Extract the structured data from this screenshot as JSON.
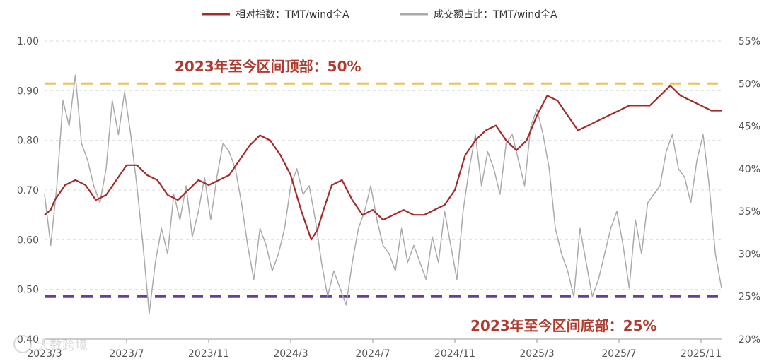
{
  "chart_data": {
    "type": "line",
    "legend": {
      "placement": "top-center",
      "items": [
        {
          "label": "相对指数：TMT/wind全A",
          "color": "#a52a2a"
        },
        {
          "label": "成交额占比：TMT/wind全A",
          "color": "#aaaaaa"
        }
      ]
    },
    "x_tick_labels": [
      "2023/3",
      "2023/7",
      "2023/11",
      "2024/3",
      "2024/7",
      "2024/11",
      "2025/3",
      "2025/7",
      "2025/11"
    ],
    "y_left": {
      "range": [
        0.4,
        1.0
      ],
      "tick_labels": [
        "0.40",
        "0.50",
        "0.60",
        "0.70",
        "0.80",
        "0.90",
        "1.00"
      ]
    },
    "y_right": {
      "range": [
        20,
        55
      ],
      "tick_labels": [
        "20%",
        "25%",
        "30%",
        "35%",
        "40%",
        "45%",
        "50%",
        "55%"
      ]
    },
    "grid": "horizontal dashed",
    "reference_lines": [
      {
        "label": "2023年至今区间顶部：50%",
        "value_pct": 50,
        "color": "#e8c456"
      },
      {
        "label": "2023年至今区间底部：25%",
        "value_pct": 25,
        "color": "#6a3d9a"
      }
    ],
    "series": [
      {
        "name": "相对指数：TMT/wind全A",
        "axis": "left",
        "color": "#a52a2a",
        "x": [
          0,
          0.3,
          0.5,
          1,
          1.5,
          2,
          2.5,
          3,
          3.5,
          4,
          4.5,
          5,
          5.5,
          6,
          6.5,
          7,
          7.5,
          8,
          8.5,
          9,
          9.5,
          10,
          10.5,
          11,
          11.5,
          12,
          12.5,
          13,
          13.3,
          13.6,
          14,
          14.5,
          15,
          15.5,
          16,
          16.5,
          17,
          17.5,
          18,
          18.5,
          19,
          19.5,
          20,
          20.5,
          21,
          21.5,
          22,
          22.5,
          23,
          23.5,
          24,
          24.5,
          25,
          25.5,
          26,
          26.5,
          27,
          27.5,
          28,
          28.5,
          29,
          29.5,
          30,
          30.5,
          31,
          31.5,
          32,
          32.5,
          33
        ],
        "values": [
          0.65,
          0.66,
          0.68,
          0.71,
          0.72,
          0.71,
          0.68,
          0.69,
          0.72,
          0.75,
          0.75,
          0.73,
          0.72,
          0.69,
          0.68,
          0.7,
          0.72,
          0.71,
          0.72,
          0.73,
          0.76,
          0.79,
          0.81,
          0.8,
          0.77,
          0.73,
          0.66,
          0.6,
          0.62,
          0.66,
          0.71,
          0.72,
          0.68,
          0.65,
          0.66,
          0.64,
          0.65,
          0.66,
          0.65,
          0.65,
          0.66,
          0.67,
          0.7,
          0.77,
          0.8,
          0.82,
          0.83,
          0.8,
          0.78,
          0.8,
          0.85,
          0.89,
          0.88,
          0.85,
          0.82,
          0.83,
          0.84,
          0.85,
          0.86,
          0.87,
          0.87,
          0.87,
          0.89,
          0.91,
          0.89,
          0.88,
          0.87,
          0.86,
          0.86
        ]
      },
      {
        "name": "成交额占比：TMT/wind全A",
        "axis": "right",
        "color": "#aaaaaa",
        "x": [
          0,
          0.3,
          0.6,
          0.9,
          1.2,
          1.5,
          1.8,
          2.1,
          2.4,
          2.7,
          3,
          3.3,
          3.6,
          3.9,
          4.2,
          4.5,
          4.8,
          5.1,
          5.4,
          5.7,
          6,
          6.3,
          6.6,
          6.9,
          7.2,
          7.5,
          7.8,
          8.1,
          8.4,
          8.7,
          9,
          9.3,
          9.6,
          9.9,
          10.2,
          10.5,
          10.8,
          11.1,
          11.4,
          11.7,
          12,
          12.3,
          12.6,
          12.9,
          13.2,
          13.5,
          13.8,
          14.1,
          14.4,
          14.7,
          15,
          15.3,
          15.6,
          15.9,
          16.2,
          16.5,
          16.8,
          17.1,
          17.4,
          17.7,
          18,
          18.3,
          18.6,
          18.9,
          19.2,
          19.5,
          19.8,
          20.1,
          20.4,
          20.7,
          21,
          21.3,
          21.6,
          21.9,
          22.2,
          22.5,
          22.8,
          23.1,
          23.4,
          23.7,
          24,
          24.3,
          24.6,
          24.9,
          25.2,
          25.5,
          25.8,
          26.1,
          26.4,
          26.7,
          27,
          27.3,
          27.6,
          27.9,
          28.2,
          28.5,
          28.8,
          29.1,
          29.4,
          29.7,
          30,
          30.3,
          30.6,
          30.9,
          31.2,
          31.5,
          31.8,
          32.1,
          32.4,
          32.7,
          33
        ],
        "values": [
          37,
          31,
          38,
          48,
          45,
          51,
          43,
          41,
          38,
          36,
          40,
          48,
          44,
          49,
          44,
          38,
          31,
          23,
          29,
          33,
          30,
          37,
          34,
          38,
          32,
          35,
          39,
          34,
          39,
          43,
          42,
          40,
          36,
          31,
          27,
          33,
          31,
          28,
          30,
          33,
          38,
          40,
          37,
          38,
          34,
          29,
          25,
          28,
          26,
          24,
          29,
          33,
          35,
          38,
          34,
          31,
          30,
          28,
          33,
          29,
          31,
          29,
          27,
          32,
          29,
          35,
          31,
          27,
          35,
          40,
          44,
          38,
          42,
          40,
          37,
          43,
          44,
          41,
          38,
          45,
          47,
          44,
          40,
          33,
          30,
          28,
          25,
          33,
          29,
          25,
          27,
          30,
          33,
          35,
          31,
          26,
          34,
          30,
          36,
          37,
          38,
          42,
          44,
          40,
          39,
          36,
          41,
          44,
          38,
          30,
          26
        ]
      }
    ]
  },
  "watermark": {
    "brand": "大数跨境"
  }
}
